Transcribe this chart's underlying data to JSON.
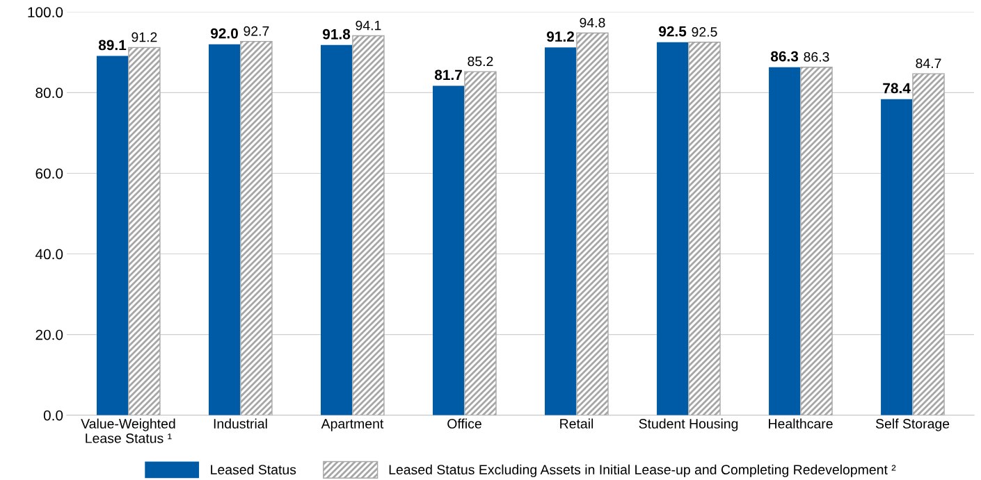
{
  "chart_data": {
    "type": "bar",
    "categories": [
      "Value-Weighted\nLease Status ¹",
      "Industrial",
      "Apartment",
      "Office",
      "Retail",
      "Student Housing",
      "Healthcare",
      "Self Storage"
    ],
    "series": [
      {
        "name": "Leased Status",
        "color": "#005ba6",
        "values": [
          89.1,
          92.0,
          91.8,
          81.7,
          91.2,
          92.5,
          86.3,
          78.4
        ],
        "value_labels": [
          "89.1",
          "92.0",
          "91.8",
          "81.7",
          "91.2",
          "92.5",
          "86.3",
          "78.4"
        ]
      },
      {
        "name": "Leased Status Excluding Assets in Initial Lease-up and Completing Redevelopment ²",
        "color": "#a6a6a6",
        "values": [
          91.2,
          92.7,
          94.1,
          85.2,
          94.8,
          92.5,
          86.3,
          84.7
        ],
        "value_labels": [
          "91.2",
          "92.7",
          "94.1",
          "85.2",
          "94.8",
          "92.5",
          "86.3",
          "84.7"
        ]
      }
    ],
    "ylim": [
      0,
      100
    ],
    "yticks": [
      {
        "value": 0,
        "label": "0.0"
      },
      {
        "value": 20,
        "label": "20.0"
      },
      {
        "value": 40,
        "label": "40.0"
      },
      {
        "value": 60,
        "label": "60.0"
      },
      {
        "value": 80,
        "label": "80.0"
      },
      {
        "value": 100,
        "label": "100.0"
      }
    ],
    "grid": "y",
    "legend": "bottom"
  }
}
